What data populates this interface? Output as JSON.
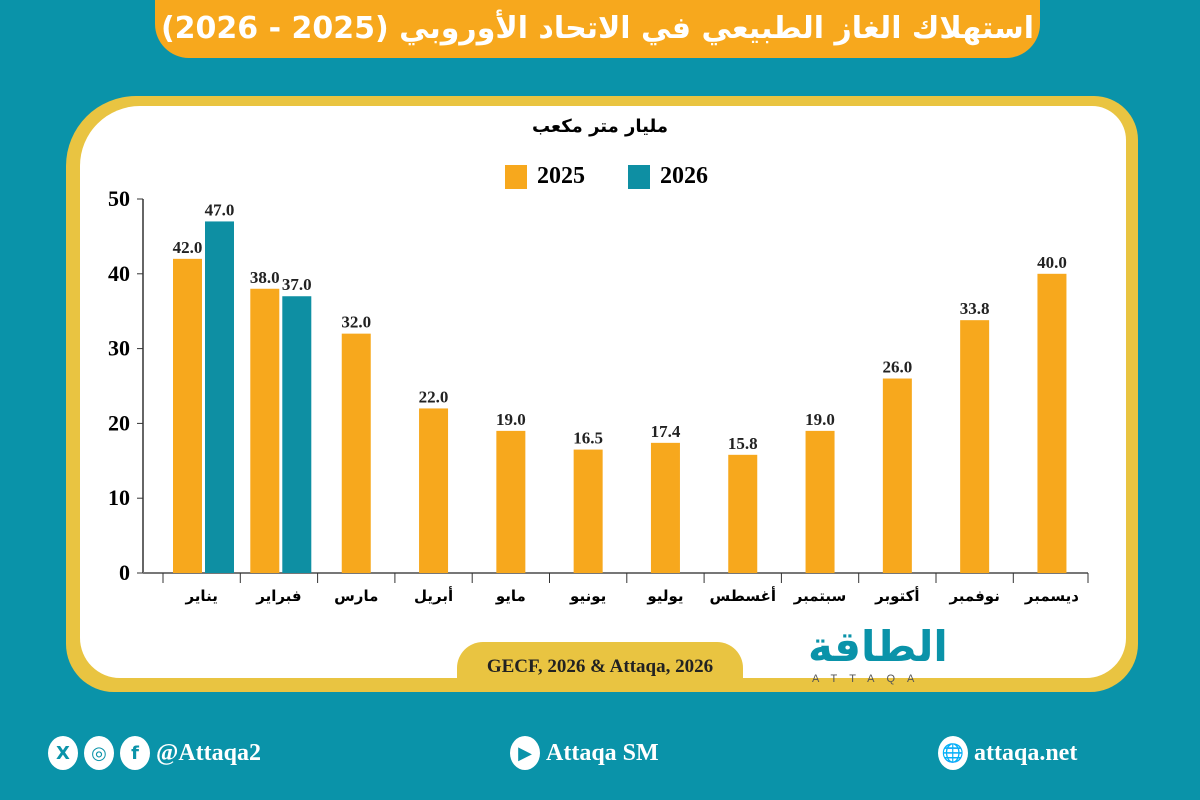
{
  "title": "استهلاك الغاز الطبيعي في الاتحاد الأوروبي (2025 - 2026)",
  "colors": {
    "background": "#0a93a9",
    "series_2025": "#f7a81d",
    "series_2026": "#0e8fa3",
    "frame": "#e9c441"
  },
  "chart_data": {
    "type": "bar",
    "title": "استهلاك الغاز الطبيعي في الاتحاد الأوروبي (2025 - 2026)",
    "ylabel": "مليار متر مكعب",
    "xlabel": "",
    "categories": [
      "يناير",
      "فبراير",
      "مارس",
      "أبريل",
      "مايو",
      "يونيو",
      "يوليو",
      "أغسطس",
      "سبتمبر",
      "أكتوبر",
      "نوفمبر",
      "ديسمبر"
    ],
    "series": [
      {
        "name": "2025",
        "color": "#f7a81d",
        "values": [
          42.0,
          38.0,
          32.0,
          22.0,
          19.0,
          16.5,
          17.4,
          15.8,
          19.0,
          26.0,
          33.8,
          40.0
        ]
      },
      {
        "name": "2026",
        "color": "#0e8fa3",
        "values": [
          47.0,
          37.0,
          null,
          null,
          null,
          null,
          null,
          null,
          null,
          null,
          null,
          null
        ]
      }
    ],
    "ylim": [
      0,
      50
    ],
    "yticks": [
      "0",
      "10",
      "20",
      "30",
      "40",
      "50"
    ],
    "legend": "top-center",
    "grid": false
  },
  "source": "GECF, 2026 & Attaqa, 2026",
  "logo": {
    "text": "الطاقة",
    "sub": "ATTAQA"
  },
  "footer": {
    "social_handle": "@Attaqa2",
    "youtube": "Attaqa SM",
    "website": "attaqa.net"
  },
  "icons": {
    "x": "X",
    "instagram": "◎",
    "facebook": "f",
    "youtube": "▶",
    "globe": "🌐"
  }
}
